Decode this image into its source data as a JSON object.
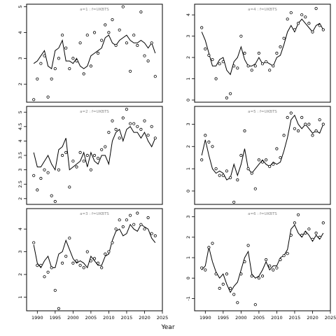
{
  "chart_data": {
    "type": "line",
    "layout": "3x2 grid of panels",
    "xlabel": "Year",
    "xlim": [
      1987,
      2025
    ],
    "xticks": [
      1990,
      1995,
      2000,
      2005,
      2010,
      2015,
      2020,
      2025
    ],
    "grid": false,
    "legend": "none",
    "panels": [
      {
        "label": "a=1 : f=UKBTS",
        "ylim": [
          1.3,
          5.1
        ],
        "yticks": [
          2,
          3,
          4,
          5
        ],
        "x": [
          1989,
          1990,
          1991,
          1992,
          1993,
          1994,
          1995,
          1996,
          1997,
          1998,
          1999,
          2000,
          2001,
          2002,
          2003,
          2004,
          2005,
          2006,
          2007,
          2008,
          2009,
          2010,
          2011,
          2012,
          2013,
          2014,
          2015,
          2016,
          2017,
          2018,
          2019,
          2020,
          2021,
          2022,
          2023
        ],
        "fitted": [
          2.8,
          2.9,
          3.1,
          3.3,
          2.7,
          2.6,
          3.3,
          3.4,
          3.7,
          2.9,
          2.9,
          2.8,
          3.0,
          2.7,
          2.6,
          2.7,
          3.1,
          3.2,
          3.3,
          3.4,
          3.8,
          3.9,
          3.6,
          3.5,
          3.7,
          3.8,
          3.9,
          3.7,
          3.6,
          3.6,
          3.7,
          3.6,
          3.4,
          3.6,
          3.2
        ],
        "observed": [
          1.4,
          2.2,
          2.8,
          3.1,
          1.5,
          2.2,
          2.6,
          3.0,
          3.9,
          3.4,
          2.6,
          3.0,
          2.9,
          3.6,
          2.4,
          3.9,
          2.7,
          4.0,
          3.2,
          3.7,
          4.3,
          4.0,
          4.5,
          3.5,
          4.1,
          5.0,
          3.6,
          2.5,
          3.9,
          3.5,
          4.8,
          3.1,
          2.9,
          3.6,
          2.3
        ]
      },
      {
        "label": "a=4 : f=UKBTS",
        "ylim": [
          -0.1,
          4.5
        ],
        "yticks": [
          0,
          1,
          2,
          3,
          4
        ],
        "x": [
          1989,
          1990,
          1991,
          1992,
          1993,
          1994,
          1995,
          1996,
          1997,
          1998,
          1999,
          2000,
          2001,
          2002,
          2003,
          2004,
          2005,
          2006,
          2007,
          2008,
          2009,
          2010,
          2011,
          2012,
          2013,
          2014,
          2015,
          2016,
          2017,
          2018,
          2019,
          2020,
          2021,
          2022,
          2023
        ],
        "fitted": [
          3.2,
          2.8,
          2.2,
          1.6,
          1.6,
          1.9,
          2.0,
          1.4,
          1.2,
          1.8,
          2.0,
          2.5,
          1.9,
          1.6,
          1.6,
          1.7,
          2.0,
          1.7,
          1.8,
          1.7,
          1.6,
          2.0,
          2.1,
          2.6,
          3.2,
          3.5,
          3.2,
          3.6,
          3.8,
          3.6,
          3.4,
          3.2,
          3.5,
          3.6,
          3.3
        ],
        "observed": [
          3.4,
          2.4,
          2.1,
          1.9,
          1.0,
          1.7,
          1.8,
          0.1,
          0.3,
          1.6,
          1.5,
          3.0,
          2.2,
          1.6,
          1.4,
          1.6,
          2.2,
          1.7,
          1.8,
          1.4,
          1.6,
          2.2,
          2.5,
          2.9,
          3.8,
          4.1,
          3.3,
          3.6,
          4.0,
          3.9,
          3.6,
          3.2,
          4.3,
          3.5,
          3.3
        ]
      },
      {
        "label": "a=2 : f=UKBTS",
        "ylim": [
          1.8,
          5.2
        ],
        "yticks": [
          2.0,
          2.5,
          3.0,
          3.5,
          4.0,
          4.5,
          5.0
        ],
        "x": [
          1989,
          1990,
          1991,
          1992,
          1993,
          1994,
          1995,
          1996,
          1997,
          1998,
          1999,
          2000,
          2001,
          2002,
          2003,
          2004,
          2005,
          2006,
          2007,
          2008,
          2009,
          2010,
          2011,
          2012,
          2013,
          2014,
          2015,
          2016,
          2017,
          2018,
          2019,
          2020,
          2021,
          2022,
          2023
        ],
        "fitted": [
          3.6,
          3.1,
          3.1,
          3.3,
          3.5,
          3.2,
          3.0,
          3.7,
          3.8,
          4.1,
          3.0,
          3.1,
          3.2,
          3.3,
          3.6,
          3.1,
          3.6,
          3.3,
          3.2,
          3.5,
          3.5,
          3.2,
          4.0,
          4.3,
          4.4,
          4.0,
          4.4,
          4.5,
          4.3,
          4.3,
          4.1,
          4.3,
          4.0,
          3.8,
          4.1
        ],
        "observed": [
          2.8,
          2.3,
          2.7,
          3.0,
          2.9,
          2.1,
          1.9,
          3.0,
          3.5,
          3.6,
          2.4,
          3.3,
          3.1,
          3.6,
          3.3,
          3.5,
          3.0,
          3.5,
          3.4,
          3.7,
          3.8,
          4.3,
          4.7,
          4.4,
          4.1,
          4.8,
          5.1,
          4.6,
          4.6,
          4.5,
          4.4,
          4.7,
          4.2,
          4.5,
          4.1
        ]
      },
      {
        "label": "a=5 : f=UKBTS",
        "ylim": [
          -0.6,
          3.8
        ],
        "yticks": [
          0,
          1,
          2,
          3
        ],
        "x": [
          1989,
          1990,
          1991,
          1992,
          1993,
          1994,
          1995,
          1996,
          1997,
          1998,
          1999,
          2000,
          2001,
          2002,
          2003,
          2004,
          2005,
          2006,
          2007,
          2008,
          2009,
          2010,
          2011,
          2012,
          2013,
          2014,
          2015,
          2016,
          2017,
          2018,
          2019,
          2020,
          2021,
          2022,
          2023
        ],
        "fitted": [
          1.6,
          2.3,
          1.6,
          1.0,
          0.8,
          0.9,
          0.8,
          0.5,
          0.6,
          1.2,
          0.7,
          1.2,
          1.9,
          1.0,
          0.8,
          1.0,
          1.2,
          1.4,
          1.2,
          1.1,
          1.3,
          1.2,
          1.3,
          1.8,
          2.4,
          3.2,
          3.4,
          3.0,
          2.8,
          3.0,
          2.8,
          2.6,
          2.7,
          2.6,
          3.0
        ],
        "observed": [
          1.4,
          2.5,
          2.2,
          2.0,
          1.0,
          0.7,
          0.7,
          0.9,
          0.6,
          -0.5,
          0.5,
          1.6,
          2.7,
          1.0,
          0.8,
          0.1,
          1.4,
          1.3,
          1.4,
          1.1,
          1.2,
          1.9,
          1.5,
          2.5,
          3.3,
          3.5,
          2.8,
          2.7,
          3.3,
          3.0,
          3.0,
          2.5,
          2.7,
          3.2,
          3.0
        ]
      },
      {
        "label": "a=3 : f=UKBTS",
        "ylim": [
          0.4,
          4.9
        ],
        "yticks": [
          1,
          2,
          3,
          4
        ],
        "x": [
          1989,
          1990,
          1991,
          1992,
          1993,
          1994,
          1995,
          1996,
          1997,
          1998,
          1999,
          2000,
          2001,
          2002,
          2003,
          2004,
          2005,
          2006,
          2007,
          2008,
          2009,
          2010,
          2011,
          2012,
          2013,
          2014,
          2015,
          2016,
          2017,
          2018,
          2019,
          2020,
          2021,
          2022,
          2023
        ],
        "fitted": [
          3.3,
          2.5,
          2.3,
          2.6,
          2.8,
          2.3,
          2.3,
          2.9,
          3.0,
          3.5,
          3.1,
          2.7,
          2.5,
          2.6,
          2.5,
          2.3,
          2.8,
          2.6,
          2.4,
          2.4,
          2.8,
          2.9,
          3.5,
          3.9,
          4.0,
          3.7,
          3.8,
          4.2,
          4.0,
          3.9,
          4.2,
          4.1,
          4.0,
          3.6,
          3.4
        ],
        "observed": [
          3.4,
          2.4,
          2.4,
          1.9,
          2.1,
          2.3,
          1.3,
          0.5,
          2.5,
          2.8,
          3.6,
          2.5,
          2.6,
          2.4,
          2.3,
          3.0,
          2.6,
          2.7,
          2.5,
          2.3,
          2.9,
          3.0,
          3.4,
          4.0,
          4.4,
          4.1,
          4.4,
          4.6,
          4.2,
          4.7,
          4.2,
          4.0,
          4.5,
          3.8,
          3.7
        ]
      },
      {
        "label": "a=6 : f=UKBTS",
        "ylim": [
          -1.6,
          3.4
        ],
        "yticks": [
          -1,
          0,
          1,
          2,
          3
        ],
        "x": [
          1989,
          1990,
          1991,
          1992,
          1993,
          1994,
          1995,
          1996,
          1997,
          1998,
          1999,
          2000,
          2001,
          2002,
          2003,
          2004,
          2005,
          2006,
          2007,
          2008,
          2009,
          2010,
          2011,
          2012,
          2013,
          2014,
          2015,
          2016,
          2017,
          2018,
          2019,
          2020,
          2021,
          2022,
          2023
        ],
        "fitted": [
          0.4,
          0.6,
          1.5,
          0.8,
          0.3,
          0.0,
          0.2,
          -0.3,
          -0.7,
          -0.4,
          -0.2,
          0.4,
          1.0,
          1.3,
          0.2,
          0.0,
          0.1,
          0.4,
          0.8,
          0.4,
          0.6,
          0.6,
          1.0,
          1.1,
          1.4,
          2.4,
          2.6,
          2.2,
          2.0,
          2.3,
          2.1,
          1.8,
          2.1,
          1.9,
          2.2
        ],
        "observed": [
          0.5,
          0.4,
          1.5,
          1.7,
          0.2,
          -0.5,
          -0.3,
          0.2,
          -0.5,
          -0.8,
          -1.2,
          0.2,
          0.8,
          1.6,
          0.1,
          -1.3,
          0.0,
          0.1,
          0.9,
          0.6,
          0.4,
          0.5,
          0.9,
          1.1,
          1.2,
          2.1,
          2.7,
          3.1,
          2.1,
          2.2,
          2.4,
          1.9,
          2.2,
          2.0,
          2.7
        ]
      }
    ]
  }
}
